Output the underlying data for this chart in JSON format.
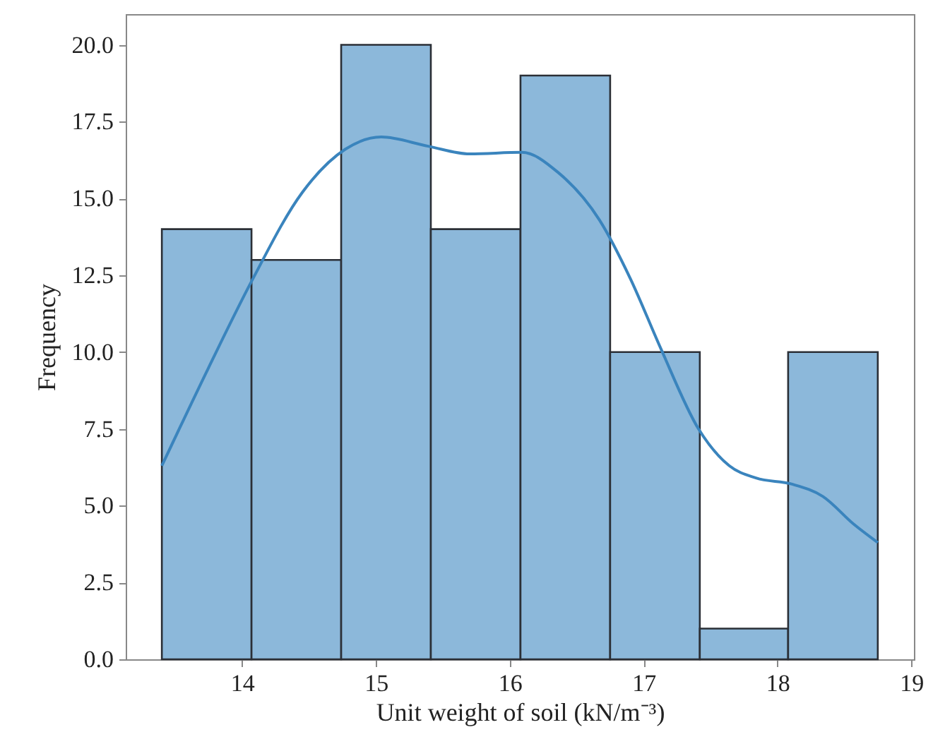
{
  "chart_data": {
    "type": "histogram",
    "xlabel": "Unit weight of soil (kN/m⁻³)",
    "ylabel": "Frequency",
    "bins": [
      13.4,
      14.07,
      14.74,
      15.41,
      16.08,
      16.75,
      17.42,
      18.08,
      18.75
    ],
    "series": [
      {
        "color": "#8cb8da",
        "values": [
          14,
          13,
          20,
          14,
          19,
          10,
          1,
          10
        ]
      },
      {
        "type": "line",
        "color": "#3a84bd",
        "x": [
          13.4,
          13.75,
          14.07,
          14.45,
          14.77,
          15.04,
          15.39,
          15.7,
          16.09,
          16.36,
          16.67,
          16.9,
          17.13,
          17.41,
          17.64,
          17.84,
          18.11,
          18.34,
          18.57,
          18.75
        ],
        "values": [
          6.3,
          9.5,
          12.3,
          15.2,
          16.6,
          17.0,
          16.7,
          16.45,
          16.5,
          15.85,
          14.3,
          12.4,
          10.1,
          7.5,
          6.3,
          5.9,
          5.7,
          5.3,
          4.4,
          3.8
        ]
      }
    ],
    "xlim": [
      13.13,
      19.02
    ],
    "xticks": [
      14,
      15,
      16,
      17,
      18,
      19
    ],
    "yticks": [
      {
        "value": 0,
        "label": "0.0"
      },
      {
        "value": 2.5,
        "label": "2.5"
      },
      {
        "value": 5,
        "label": "5.0"
      },
      {
        "value": 7.5,
        "label": "7.5"
      },
      {
        "value": 10,
        "label": "10.0"
      },
      {
        "value": 12.5,
        "label": "12.5"
      },
      {
        "value": 15,
        "label": "15.0"
      },
      {
        "value": 17.5,
        "label": "17.5"
      },
      {
        "value": 20,
        "label": "20.0"
      }
    ],
    "ylim": [
      0,
      21
    ]
  }
}
